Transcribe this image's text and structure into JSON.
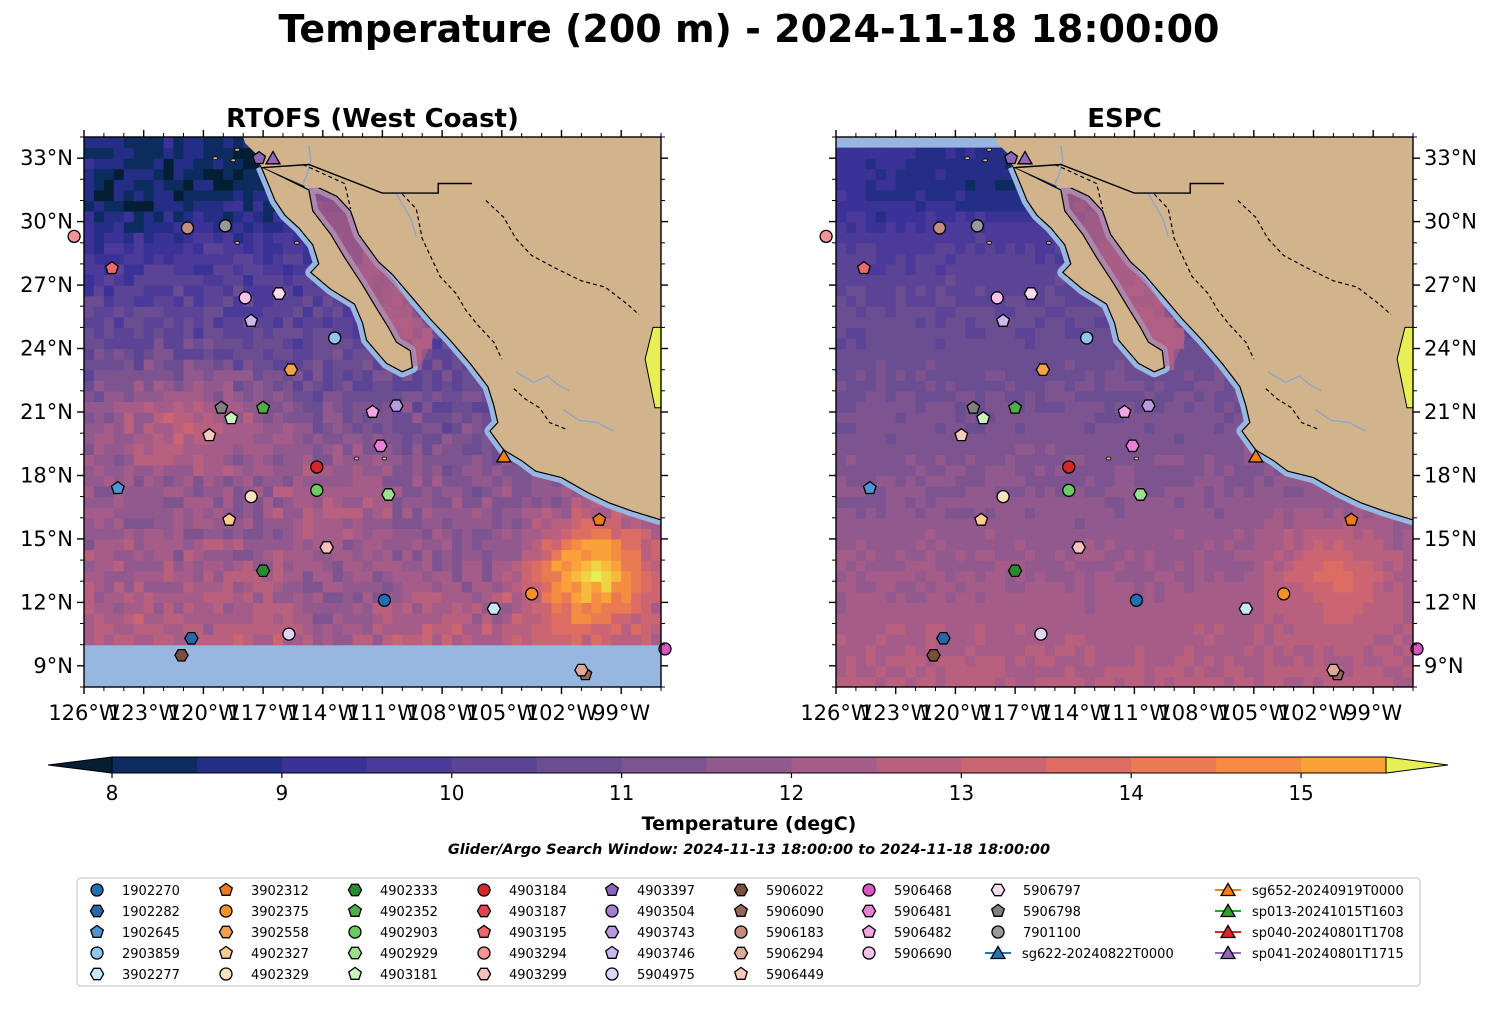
{
  "figure": {
    "title": "Temperature (200 m) - 2024-11-18 18:00:00"
  },
  "chart_data": [
    {
      "type": "heatmap",
      "title": "RTOFS (West Coast)",
      "xlabel": "",
      "ylabel": "",
      "xlim": [
        -126.0,
        -97.0
      ],
      "ylim": [
        8.0,
        34.0
      ],
      "x_ticks": [
        "126°W",
        "123°W",
        "120°W",
        "117°W",
        "114°W",
        "111°W",
        "108°W",
        "105°W",
        "102°W",
        "99°W"
      ],
      "y_ticks": [
        "9°N",
        "12°N",
        "15°N",
        "18°N",
        "21°N",
        "24°N",
        "27°N",
        "30°N",
        "33°N"
      ],
      "y_axis_side": "left",
      "nodata_band_below_lat": 10.2,
      "field_summary": "cold (<9 degC) off southern California, 10-11 degC over open ocean, warm band 12.5-14 degC near 20-21N 123-118W, warm core ~15 degC near 13.5N 100.5W, warm Gulf of California"
    },
    {
      "type": "heatmap",
      "title": "ESPC",
      "xlabel": "",
      "ylabel": "",
      "xlim": [
        -126.0,
        -97.0
      ],
      "ylim": [
        8.0,
        34.0
      ],
      "x_ticks": [
        "126°W",
        "123°W",
        "120°W",
        "117°W",
        "114°W",
        "111°W",
        "108°W",
        "105°W",
        "102°W",
        "99°W"
      ],
      "y_ticks": [
        "9°N",
        "12°N",
        "15°N",
        "18°N",
        "21°N",
        "24°N",
        "27°N",
        "30°N",
        "33°N"
      ],
      "y_axis_side": "right",
      "field_summary": "cold (<9 degC) off southern California, smoother 10.5-11.5 degC over open ocean, warm spot ~13 degC near 13.5N 101W, warm Gulf of California"
    }
  ],
  "colorbar": {
    "label": "Temperature (degC)",
    "min": 8,
    "max": 15.5,
    "step": 0.5,
    "ticks": [
      "8",
      "9",
      "10",
      "11",
      "12",
      "13",
      "14",
      "15"
    ],
    "tick_values": [
      8,
      9,
      10,
      11,
      12,
      13,
      14,
      15
    ],
    "extend": "both",
    "colors": [
      "#041f33",
      "#0c2c5f",
      "#242e86",
      "#3a3296",
      "#4b3a9a",
      "#5b4496",
      "#6b4d92",
      "#7d548f",
      "#91598d",
      "#a55c88",
      "#b9607f",
      "#cc6572",
      "#dd6d63",
      "#ea7a52",
      "#f48c42",
      "#faa13a",
      "#f8ba3c",
      "#f0d444",
      "#e6f056"
    ]
  },
  "search_window": "Glider/Argo Search Window: 2024-11-13 18:00:00 to 2024-11-18 18:00:00",
  "colors": {
    "ocean_nodata": "#98b7e0",
    "land": "#d2b48c",
    "border": "#000000",
    "river": "#8fa3c8"
  },
  "legend": [
    {
      "label": "1902270",
      "marker": "circle",
      "color": "#1f6fb2"
    },
    {
      "label": "1902282",
      "marker": "hexagon",
      "color": "#2767a8"
    },
    {
      "label": "1902645",
      "marker": "pentagon",
      "color": "#4d96d2"
    },
    {
      "label": "2903859",
      "marker": "circle",
      "color": "#8fc6ee"
    },
    {
      "label": "3902277",
      "marker": "hexagon",
      "color": "#c7e8fa"
    },
    {
      "label": "3902312",
      "marker": "pentagon",
      "color": "#ee7a1c"
    },
    {
      "label": "3902375",
      "marker": "circle",
      "color": "#f7922b"
    },
    {
      "label": "3902558",
      "marker": "hexagon",
      "color": "#f5a04a"
    },
    {
      "label": "4902327",
      "marker": "pentagon",
      "color": "#fbcb8f"
    },
    {
      "label": "4902329",
      "marker": "circle",
      "color": "#fde2c2"
    },
    {
      "label": "4902333",
      "marker": "hexagon",
      "color": "#2a8a2f"
    },
    {
      "label": "4902352",
      "marker": "pentagon",
      "color": "#4fae46"
    },
    {
      "label": "4902903",
      "marker": "circle",
      "color": "#6ccb63"
    },
    {
      "label": "4902929",
      "marker": "hexagon",
      "color": "#9ae08f"
    },
    {
      "label": "4903181",
      "marker": "pentagon",
      "color": "#c9f3bd"
    },
    {
      "label": "4903184",
      "marker": "circle",
      "color": "#d62728"
    },
    {
      "label": "4903187",
      "marker": "hexagon",
      "color": "#e0474a"
    },
    {
      "label": "4903195",
      "marker": "pentagon",
      "color": "#eb6a68"
    },
    {
      "label": "4903294",
      "marker": "circle",
      "color": "#f59595"
    },
    {
      "label": "4903299",
      "marker": "hexagon",
      "color": "#f9c0c0"
    },
    {
      "label": "4903397",
      "marker": "pentagon",
      "color": "#8b63b8"
    },
    {
      "label": "4903504",
      "marker": "circle",
      "color": "#a27fd0"
    },
    {
      "label": "4903743",
      "marker": "hexagon",
      "color": "#b79be0"
    },
    {
      "label": "4903746",
      "marker": "pentagon",
      "color": "#cbb8ee"
    },
    {
      "label": "5904975",
      "marker": "circle",
      "color": "#e2d4f7"
    },
    {
      "label": "5906022",
      "marker": "hexagon",
      "color": "#7a4e3c"
    },
    {
      "label": "5906090",
      "marker": "pentagon",
      "color": "#96685a"
    },
    {
      "label": "5906183",
      "marker": "circle",
      "color": "#c48d80"
    },
    {
      "label": "5906294",
      "marker": "hexagon",
      "color": "#e0aa9a"
    },
    {
      "label": "5906449",
      "marker": "pentagon",
      "color": "#f4cbbc"
    },
    {
      "label": "5906468",
      "marker": "circle",
      "color": "#d955c6"
    },
    {
      "label": "5906481",
      "marker": "hexagon",
      "color": "#e97fd6"
    },
    {
      "label": "5906482",
      "marker": "pentagon",
      "color": "#f3a6e3"
    },
    {
      "label": "5906690",
      "marker": "circle",
      "color": "#f8c2ec"
    },
    {
      "label": "5906797",
      "marker": "hexagon",
      "color": "#fbdcf4"
    },
    {
      "label": "5906798",
      "marker": "pentagon",
      "color": "#7f7f7f"
    },
    {
      "label": "7901100",
      "marker": "circle",
      "color": "#999999"
    },
    {
      "label": "sg622-20240822T0000",
      "marker": "triangle-line",
      "color": "#1f77b4"
    },
    {
      "label": "sg652-20240919T0000",
      "marker": "triangle-line",
      "color": "#ff7f0e"
    },
    {
      "label": "sp013-20241015T1603",
      "marker": "triangle-line",
      "color": "#2ca02c"
    },
    {
      "label": "sp040-20240801T1708",
      "marker": "triangle-line",
      "color": "#d62728"
    },
    {
      "label": "sp041-20240801T1715",
      "marker": "triangle-line",
      "color": "#9467bd"
    }
  ],
  "platform_positions": [
    {
      "id": "1902270",
      "lon": -110.9,
      "lat": 12.1
    },
    {
      "id": "1902645",
      "lon": -124.3,
      "lat": 17.4
    },
    {
      "id": "2903859",
      "lon": -113.4,
      "lat": 24.5
    },
    {
      "id": "3902277",
      "lon": -105.4,
      "lat": 11.7
    },
    {
      "id": "3902312",
      "lon": -100.1,
      "lat": 15.9
    },
    {
      "id": "3902375",
      "lon": -103.5,
      "lat": 12.4
    },
    {
      "id": "3902558",
      "lon": -115.6,
      "lat": 23.0
    },
    {
      "id": "4902327",
      "lon": -118.7,
      "lat": 15.9
    },
    {
      "id": "4902329",
      "lon": -117.6,
      "lat": 17.0
    },
    {
      "id": "4902333",
      "lon": -117.0,
      "lat": 13.5
    },
    {
      "id": "4902352",
      "lon": -117.0,
      "lat": 21.2
    },
    {
      "id": "4902903",
      "lon": -114.3,
      "lat": 17.3
    },
    {
      "id": "4902929",
      "lon": -110.7,
      "lat": 17.1
    },
    {
      "id": "4903181",
      "lon": -118.6,
      "lat": 20.7
    },
    {
      "id": "4903184",
      "lon": -114.3,
      "lat": 18.4
    },
    {
      "id": "4903195",
      "lon": -124.6,
      "lat": 27.8
    },
    {
      "id": "4903294",
      "lon": -126.5,
      "lat": 29.3
    },
    {
      "id": "4903299",
      "lon": -113.8,
      "lat": 14.6
    },
    {
      "id": "4903397",
      "lon": -117.2,
      "lat": 33.0
    },
    {
      "id": "4903743",
      "lon": -110.3,
      "lat": 21.3
    },
    {
      "id": "4903746",
      "lon": -117.6,
      "lat": 25.3
    },
    {
      "id": "5904975",
      "lon": -115.7,
      "lat": 10.5
    },
    {
      "id": "5906022",
      "lon": -121.1,
      "lat": 9.5
    },
    {
      "id": "5906090",
      "lon": -100.8,
      "lat": 8.6
    },
    {
      "id": "5906183",
      "lon": -120.8,
      "lat": 29.7
    },
    {
      "id": "5906294",
      "lon": -101.0,
      "lat": 8.8
    },
    {
      "id": "5906449",
      "lon": -119.7,
      "lat": 19.9
    },
    {
      "id": "5906468",
      "lon": -96.8,
      "lat": 9.8
    },
    {
      "id": "5906481",
      "lon": -111.1,
      "lat": 19.4
    },
    {
      "id": "5906482",
      "lon": -111.5,
      "lat": 21.0
    },
    {
      "id": "5906690",
      "lon": -117.9,
      "lat": 26.4
    },
    {
      "id": "5906797",
      "lon": -116.2,
      "lat": 26.6
    },
    {
      "id": "5906798",
      "lon": -119.1,
      "lat": 21.2
    },
    {
      "id": "7901100",
      "lon": -118.9,
      "lat": 29.8
    },
    {
      "id": "1902282",
      "lon": -120.6,
      "lat": 10.3
    },
    {
      "id": "sg652-20240919T0000",
      "lon": -104.9,
      "lat": 18.9
    },
    {
      "id": "sp041-20240801T1715",
      "lon": -116.5,
      "lat": 33.0
    }
  ]
}
